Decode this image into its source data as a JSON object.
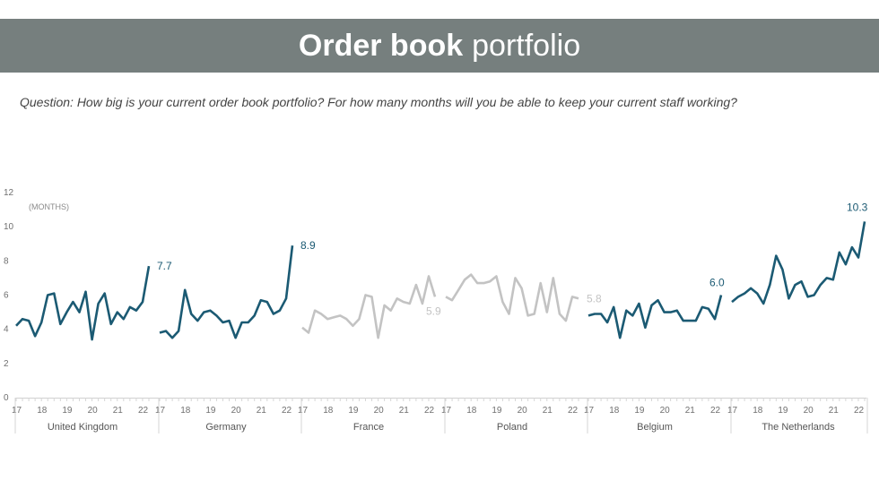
{
  "header": {
    "title_bold": "Order book",
    "title_light": "portfolio"
  },
  "question": "Question: How big is your current order book portfolio? For how many months will you be able to keep your current staff working?",
  "colors": {
    "header_bg": "#767f7e",
    "highlight": "#1b5a73",
    "muted": "#c3c3c3"
  },
  "chart_data": {
    "type": "line",
    "ylabel": "(MONTHS)",
    "ylim": [
      0,
      12
    ],
    "yticks": [
      "0",
      "2",
      "4",
      "6",
      "8",
      "10",
      "12"
    ],
    "x_tick_labels": [
      "17",
      "18",
      "19",
      "20",
      "21",
      "22"
    ],
    "grid": false,
    "panels": [
      {
        "name": "United Kingdom",
        "highlight": true,
        "end_label": "7.7",
        "values": [
          4.2,
          4.6,
          4.5,
          3.6,
          4.4,
          6.0,
          6.1,
          4.3,
          5.0,
          5.6,
          5.0,
          6.2,
          3.4,
          5.5,
          6.1,
          4.3,
          5.0,
          4.6,
          5.3,
          5.1,
          5.6,
          7.7
        ]
      },
      {
        "name": "Germany",
        "highlight": true,
        "end_label": "8.9",
        "values": [
          3.8,
          3.9,
          3.5,
          3.9,
          6.3,
          4.9,
          4.5,
          5.0,
          5.1,
          4.8,
          4.4,
          4.5,
          3.5,
          4.4,
          4.4,
          4.8,
          5.7,
          5.6,
          4.9,
          5.1,
          5.8,
          8.9
        ]
      },
      {
        "name": "France",
        "highlight": false,
        "end_label": "5.9",
        "values": [
          4.1,
          3.8,
          5.1,
          4.9,
          4.6,
          4.7,
          4.8,
          4.6,
          4.2,
          4.6,
          6.0,
          5.9,
          3.5,
          5.4,
          5.1,
          5.8,
          5.6,
          5.5,
          6.6,
          5.5,
          7.1,
          5.9
        ]
      },
      {
        "name": "Poland",
        "highlight": false,
        "end_label": "5.8",
        "values": [
          5.9,
          5.7,
          6.3,
          6.9,
          7.2,
          6.7,
          6.7,
          6.8,
          7.1,
          5.6,
          4.9,
          7.0,
          6.4,
          4.8,
          4.9,
          6.7,
          5.0,
          7.0,
          4.9,
          4.5,
          5.9,
          5.8
        ]
      },
      {
        "name": "Belgium",
        "highlight": true,
        "end_label": "6.0",
        "values": [
          4.8,
          4.9,
          4.9,
          4.4,
          5.3,
          3.5,
          5.1,
          4.8,
          5.5,
          4.1,
          5.4,
          5.7,
          5.0,
          5.0,
          5.1,
          4.5,
          4.5,
          4.5,
          5.3,
          5.2,
          4.6,
          6.0
        ]
      },
      {
        "name": "The Netherlands",
        "highlight": true,
        "end_label": "10.3",
        "values": [
          5.6,
          5.9,
          6.1,
          6.4,
          6.1,
          5.5,
          6.6,
          8.3,
          7.5,
          5.8,
          6.6,
          6.8,
          5.9,
          6.0,
          6.6,
          7.0,
          6.9,
          8.5,
          7.8,
          8.8,
          8.2,
          10.3
        ]
      }
    ]
  }
}
